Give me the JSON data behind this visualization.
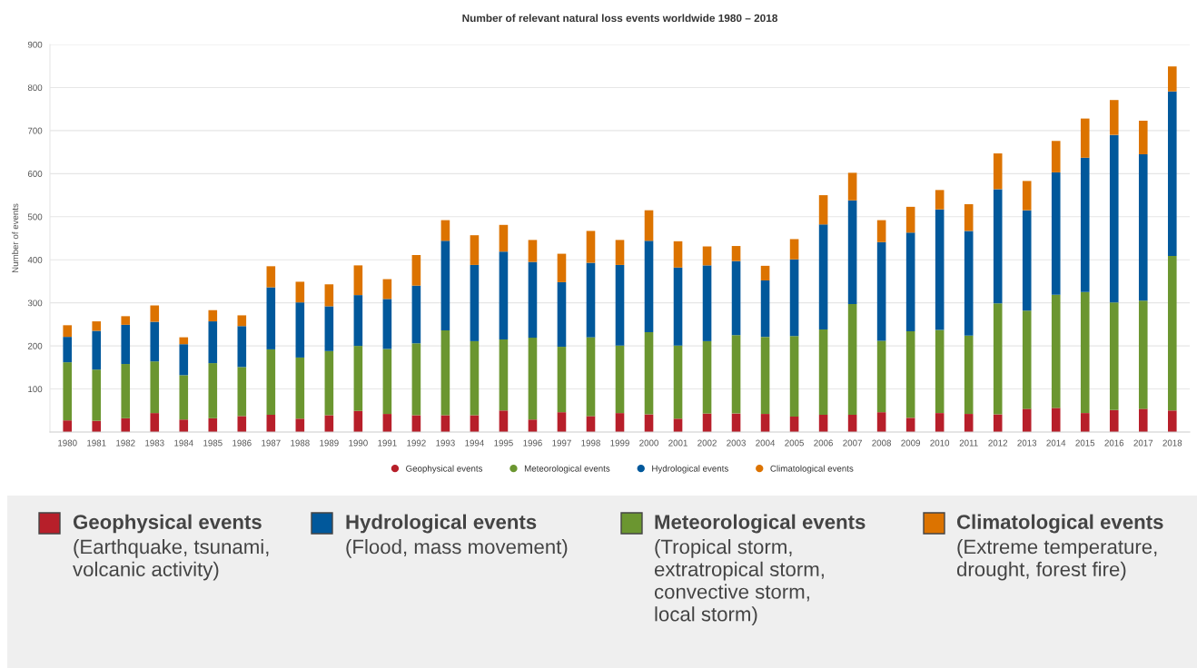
{
  "chart_data": {
    "type": "bar",
    "stacked": true,
    "title": "Number of relevant natural loss events worldwide 1980 – 2018",
    "ylabel": "Number of events",
    "categories": [
      "1980",
      "1981",
      "1982",
      "1983",
      "1984",
      "1985",
      "1986",
      "1987",
      "1988",
      "1989",
      "1990",
      "1991",
      "1992",
      "1993",
      "1994",
      "1995",
      "1996",
      "1997",
      "1998",
      "1999",
      "2000",
      "2001",
      "2002",
      "2003",
      "2004",
      "2005",
      "2006",
      "2007",
      "2008",
      "2009",
      "2010",
      "2011",
      "2012",
      "2013",
      "2014",
      "2015",
      "2016",
      "2017",
      "2018"
    ],
    "series": [
      {
        "name": "Geophysical events",
        "color": "#b71f2a",
        "values": [
          27,
          26,
          32,
          44,
          29,
          32,
          37,
          40,
          31,
          39,
          49,
          42,
          39,
          39,
          39,
          50,
          29,
          46,
          37,
          44,
          41,
          31,
          43,
          43,
          42,
          36,
          40,
          40,
          46,
          33,
          44,
          42,
          41,
          54,
          56,
          44,
          51,
          54,
          50
        ]
      },
      {
        "name": "Meteorological events",
        "color": "#6b9630",
        "values": [
          135,
          119,
          126,
          120,
          103,
          128,
          114,
          152,
          142,
          149,
          151,
          151,
          167,
          197,
          172,
          165,
          190,
          152,
          183,
          157,
          191,
          170,
          168,
          182,
          179,
          187,
          198,
          257,
          166,
          201,
          193,
          182,
          258,
          228,
          263,
          281,
          250,
          251,
          359
        ]
      },
      {
        "name": "Hydrological events",
        "color": "#01589b",
        "values": [
          59,
          90,
          91,
          92,
          72,
          97,
          95,
          144,
          128,
          104,
          118,
          116,
          134,
          208,
          177,
          204,
          176,
          150,
          173,
          187,
          212,
          181,
          176,
          172,
          131,
          178,
          244,
          241,
          229,
          229,
          280,
          243,
          265,
          233,
          284,
          312,
          389,
          340,
          382
        ]
      },
      {
        "name": "Climatological events",
        "color": "#dc7300",
        "values": [
          27,
          22,
          20,
          38,
          16,
          26,
          25,
          49,
          48,
          51,
          69,
          46,
          71,
          48,
          69,
          62,
          51,
          66,
          74,
          58,
          71,
          61,
          44,
          35,
          34,
          47,
          68,
          64,
          51,
          60,
          45,
          62,
          83,
          68,
          73,
          91,
          81,
          78,
          58
        ]
      }
    ],
    "ylim": [
      0,
      900
    ],
    "yticks": [
      100,
      200,
      300,
      400,
      500,
      600,
      700,
      800,
      900
    ],
    "grid": "y",
    "legend": "bottom",
    "annotations": [
      "(Earthquake, tsunami,\nvolcanic activity)",
      "(Flood, mass movement)",
      "(Tropical storm,\nextratropical storm,\nconvective storm,\nlocal storm)",
      "(Extreme temperature,\ndrought, forest fire)"
    ]
  }
}
